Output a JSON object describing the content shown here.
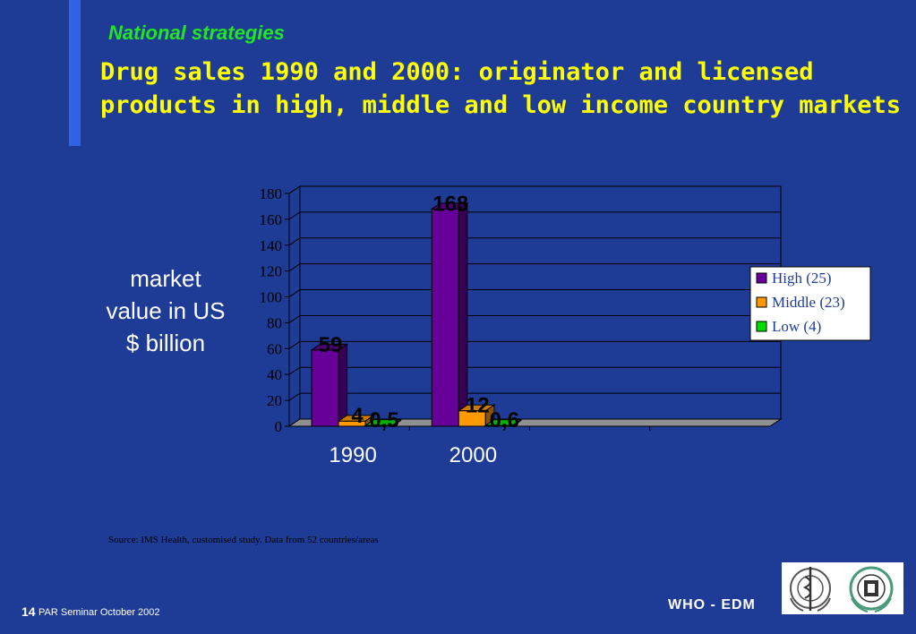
{
  "slide": {
    "section": "National strategies",
    "title_line1": "Drug sales 1990 and 2000: originator and licensed",
    "title_line2": "products in high, middle and low income country markets",
    "ylabel_line1": "market",
    "ylabel_line2": "value in US",
    "ylabel_line3": "$ billion",
    "source": "Source: IMS Health, customised study. Data from 52 countries/areas",
    "page_number": "14",
    "footer_text": "PAR Seminar October 2002",
    "footer_org": "WHO - EDM",
    "logos": [
      "WHO emblem",
      "EDM emblem"
    ]
  },
  "chart_data": {
    "type": "bar",
    "categories": [
      "1990",
      "2000"
    ],
    "series": [
      {
        "name": "High (25)",
        "values": [
          59,
          168
        ],
        "labels": [
          "59",
          "168"
        ],
        "color": "#660099"
      },
      {
        "name": "Middle (23)",
        "values": [
          4,
          12
        ],
        "labels": [
          "4",
          "12"
        ],
        "color": "#ff9900"
      },
      {
        "name": "Low (4)",
        "values": [
          0.5,
          0.6
        ],
        "labels": [
          "0,5",
          "0,6"
        ],
        "color": "#00dd00"
      }
    ],
    "ylim": [
      0,
      180
    ],
    "yticks": [
      0,
      20,
      40,
      60,
      80,
      100,
      120,
      140,
      160,
      180
    ],
    "grid": true,
    "legend": "right",
    "style": "3d-clustered-column",
    "plot_background": "#1e3c96"
  }
}
